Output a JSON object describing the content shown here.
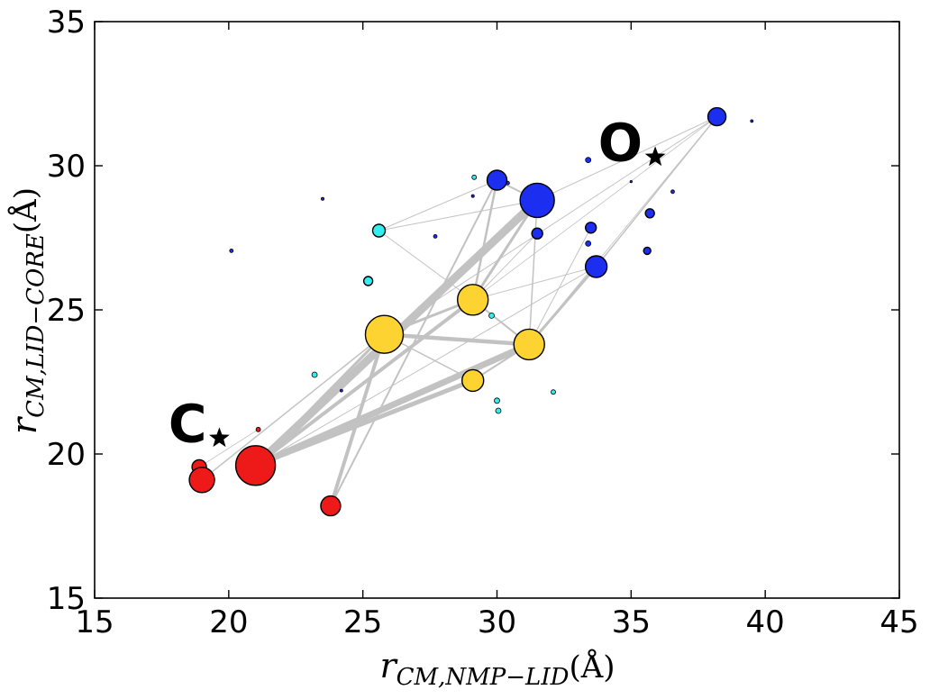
{
  "chart_data": {
    "type": "scatter",
    "title": "",
    "xlabel": {
      "main": "r",
      "sub": "CM,NMP−LID",
      "unit": "(Å)"
    },
    "ylabel": {
      "main": "r",
      "sub": "CM,LID−CORE",
      "unit": "(Å)"
    },
    "xlim": [
      15,
      45
    ],
    "ylim": [
      15,
      35
    ],
    "xticks": [
      15,
      20,
      25,
      30,
      35,
      40,
      45
    ],
    "yticks": [
      15,
      20,
      25,
      30,
      35
    ],
    "colors": {
      "red": "#ee1a1a",
      "yellow": "#fdd331",
      "blue": "#1c2ff0",
      "cyan": "#33eef0",
      "edge": "#c2c2c2",
      "frame": "#000000"
    },
    "nodes": [
      {
        "id": "r1",
        "x": 21.0,
        "y": 19.6,
        "r": 22,
        "color": "red"
      },
      {
        "id": "r2",
        "x": 19.0,
        "y": 19.1,
        "r": 14,
        "color": "red"
      },
      {
        "id": "r3",
        "x": 18.9,
        "y": 19.55,
        "r": 8,
        "color": "red"
      },
      {
        "id": "r4",
        "x": 23.8,
        "y": 18.2,
        "r": 11,
        "color": "red"
      },
      {
        "id": "y1",
        "x": 25.8,
        "y": 24.15,
        "r": 21,
        "color": "yellow"
      },
      {
        "id": "y2",
        "x": 29.1,
        "y": 25.35,
        "r": 17,
        "color": "yellow"
      },
      {
        "id": "y3",
        "x": 31.2,
        "y": 23.8,
        "r": 17,
        "color": "yellow"
      },
      {
        "id": "y4",
        "x": 29.1,
        "y": 22.55,
        "r": 12,
        "color": "yellow"
      },
      {
        "id": "b1",
        "x": 31.5,
        "y": 28.8,
        "r": 19,
        "color": "blue"
      },
      {
        "id": "b2",
        "x": 30.0,
        "y": 29.5,
        "r": 11,
        "color": "blue"
      },
      {
        "id": "b3",
        "x": 38.2,
        "y": 31.7,
        "r": 10,
        "color": "blue"
      },
      {
        "id": "b4",
        "x": 33.7,
        "y": 26.5,
        "r": 12,
        "color": "blue"
      },
      {
        "id": "b5",
        "x": 31.5,
        "y": 27.65,
        "r": 6,
        "color": "blue"
      },
      {
        "id": "b6",
        "x": 33.5,
        "y": 27.85,
        "r": 6,
        "color": "blue"
      },
      {
        "id": "b7",
        "x": 35.7,
        "y": 28.35,
        "r": 5,
        "color": "blue"
      },
      {
        "id": "b8",
        "x": 35.6,
        "y": 27.05,
        "r": 4,
        "color": "blue"
      },
      {
        "id": "b9",
        "x": 33.4,
        "y": 30.2,
        "r": 3,
        "color": "blue"
      },
      {
        "id": "b10",
        "x": 33.4,
        "y": 27.3,
        "r": 3,
        "color": "blue"
      },
      {
        "id": "c1",
        "x": 25.6,
        "y": 27.75,
        "r": 7,
        "color": "cyan"
      },
      {
        "id": "c2",
        "x": 25.2,
        "y": 26.0,
        "r": 5,
        "color": "cyan"
      },
      {
        "id": "c3",
        "x": 23.2,
        "y": 22.75,
        "r": 3,
        "color": "cyan"
      },
      {
        "id": "c4",
        "x": 30.0,
        "y": 21.85,
        "r": 3,
        "color": "cyan"
      },
      {
        "id": "c5",
        "x": 30.05,
        "y": 21.5,
        "r": 3,
        "color": "cyan"
      },
      {
        "id": "c6",
        "x": 29.8,
        "y": 24.8,
        "r": 3,
        "color": "cyan"
      },
      {
        "id": "c7",
        "x": 29.15,
        "y": 29.6,
        "r": 2.5,
        "color": "cyan"
      },
      {
        "id": "c8",
        "x": 32.1,
        "y": 22.15,
        "r": 2.5,
        "color": "cyan"
      },
      {
        "id": "d1",
        "x": 20.1,
        "y": 27.05,
        "r": 2,
        "color": "blue"
      },
      {
        "id": "d2",
        "x": 23.5,
        "y": 28.85,
        "r": 1.6,
        "color": "blue"
      },
      {
        "id": "d3",
        "x": 27.7,
        "y": 27.55,
        "r": 2,
        "color": "blue"
      },
      {
        "id": "d4",
        "x": 29.1,
        "y": 28.95,
        "r": 1.6,
        "color": "blue"
      },
      {
        "id": "d5",
        "x": 36.55,
        "y": 29.1,
        "r": 2,
        "color": "blue"
      },
      {
        "id": "d6",
        "x": 39.5,
        "y": 31.55,
        "r": 1.5,
        "color": "blue"
      },
      {
        "id": "d7",
        "x": 24.2,
        "y": 22.2,
        "r": 1.5,
        "color": "blue"
      },
      {
        "id": "d8",
        "x": 21.1,
        "y": 20.85,
        "r": 2.5,
        "color": "red"
      },
      {
        "id": "d9",
        "x": 35.0,
        "y": 29.45,
        "r": 1.2,
        "color": "blue"
      },
      {
        "id": "d10",
        "x": 30.4,
        "y": 29.4,
        "r": 2,
        "color": "blue"
      }
    ],
    "edges": [
      {
        "from": "r1",
        "to": "b1",
        "w": 9
      },
      {
        "from": "r1",
        "to": "y3",
        "w": 7
      },
      {
        "from": "r1",
        "to": "y4",
        "w": 5
      },
      {
        "from": "r1",
        "to": "y2",
        "w": 4
      },
      {
        "from": "r1",
        "to": "y1",
        "w": 3
      },
      {
        "from": "r2",
        "to": "y1",
        "w": 1.5
      },
      {
        "from": "r4",
        "to": "y1",
        "w": 4
      },
      {
        "from": "r4",
        "to": "b2",
        "w": 2
      },
      {
        "from": "y1",
        "to": "y3",
        "w": 4.5
      },
      {
        "from": "y1",
        "to": "y2",
        "w": 3
      },
      {
        "from": "y1",
        "to": "y4",
        "w": 1.5
      },
      {
        "from": "y2",
        "to": "b1",
        "w": 3
      },
      {
        "from": "y2",
        "to": "b2",
        "w": 2.5
      },
      {
        "from": "y2",
        "to": "y3",
        "w": 2
      },
      {
        "from": "y2",
        "to": "b4",
        "w": 1
      },
      {
        "from": "y2",
        "to": "c1",
        "w": 1
      },
      {
        "from": "y2",
        "to": "b5",
        "w": 1
      },
      {
        "from": "y3",
        "to": "b4",
        "w": 3
      },
      {
        "from": "y3",
        "to": "b1",
        "w": 1.5
      },
      {
        "from": "y3",
        "to": "y4",
        "w": 2
      },
      {
        "from": "y3",
        "to": "b6",
        "w": 1
      },
      {
        "from": "y1",
        "to": "b3",
        "w": 1
      },
      {
        "from": "b1",
        "to": "b2",
        "w": 2
      },
      {
        "from": "b1",
        "to": "c1",
        "w": 1
      },
      {
        "from": "c1",
        "to": "b2",
        "w": 1
      },
      {
        "from": "b3",
        "to": "b4",
        "w": 1.5
      },
      {
        "from": "b3",
        "to": "b1",
        "w": 1
      },
      {
        "from": "b3",
        "to": "y3",
        "w": 0.8
      },
      {
        "from": "b3",
        "to": "y2",
        "w": 0.8
      },
      {
        "from": "r3",
        "to": "d8",
        "w": 0.8
      },
      {
        "from": "r1",
        "to": "b4",
        "w": 1
      }
    ],
    "annotations": [
      {
        "label": "C",
        "star_x": 19.65,
        "star_y": 20.55
      },
      {
        "label": "O",
        "star_x": 35.9,
        "star_y": 30.3
      }
    ]
  }
}
